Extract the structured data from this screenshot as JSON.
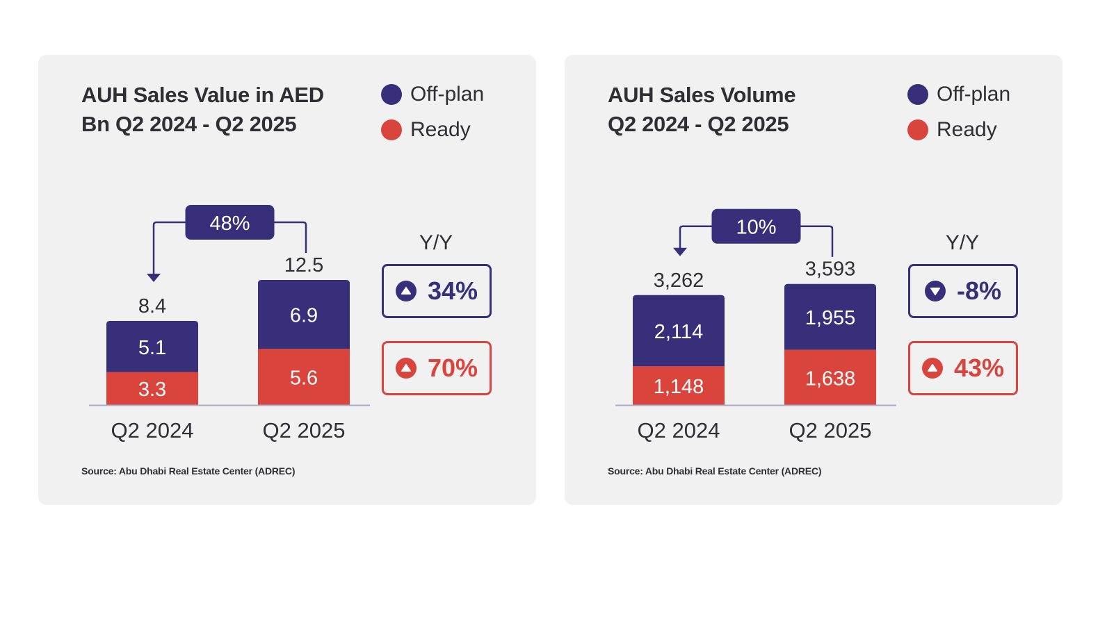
{
  "colors": {
    "offplan": "#372f7a",
    "ready": "#d9453d",
    "axis": "#a9a9c7",
    "panel": "#f1f1f2"
  },
  "legend": {
    "offplan": "Off-plan",
    "ready": "Ready"
  },
  "yy_label": "Y/Y",
  "source": "Source: Abu Dhabi Real Estate Center (ADREC)",
  "icons": {
    "up": "triangle-up-icon",
    "down": "triangle-down-icon"
  },
  "chart_data": [
    {
      "type": "bar",
      "stacked": true,
      "title_lines": [
        "AUH Sales Value in AED",
        "Bn Q2 2024 - Q2 2025"
      ],
      "categories": [
        "Q2 2024",
        "Q2 2025"
      ],
      "series": [
        {
          "name": "Ready",
          "values": [
            3.3,
            5.6
          ],
          "labels": [
            "3.3",
            "5.6"
          ]
        },
        {
          "name": "Off-plan",
          "values": [
            5.1,
            6.9
          ],
          "labels": [
            "5.1",
            "6.9"
          ]
        }
      ],
      "totals": [
        8.4,
        12.5
      ],
      "total_labels": [
        "8.4",
        "12.5"
      ],
      "growth_label": "48%",
      "yy": {
        "offplan": {
          "value": "34%",
          "direction": "up"
        },
        "ready": {
          "value": "70%",
          "direction": "up"
        }
      },
      "ylim": [
        0,
        12.5
      ]
    },
    {
      "type": "bar",
      "stacked": true,
      "title_lines": [
        "AUH Sales Volume",
        "Q2 2024 - Q2 2025"
      ],
      "categories": [
        "Q2 2024",
        "Q2 2025"
      ],
      "series": [
        {
          "name": "Ready",
          "values": [
            1148,
            1638
          ],
          "labels": [
            "1,148",
            "1,638"
          ]
        },
        {
          "name": "Off-plan",
          "values": [
            2114,
            1955
          ],
          "labels": [
            "2,114",
            "1,955"
          ]
        }
      ],
      "totals": [
        3262,
        3593
      ],
      "total_labels": [
        "3,262",
        "3,593"
      ],
      "growth_label": "10%",
      "yy": {
        "offplan": {
          "value": "-8%",
          "direction": "down"
        },
        "ready": {
          "value": "43%",
          "direction": "up"
        }
      },
      "ylim": [
        0,
        5500
      ]
    }
  ]
}
